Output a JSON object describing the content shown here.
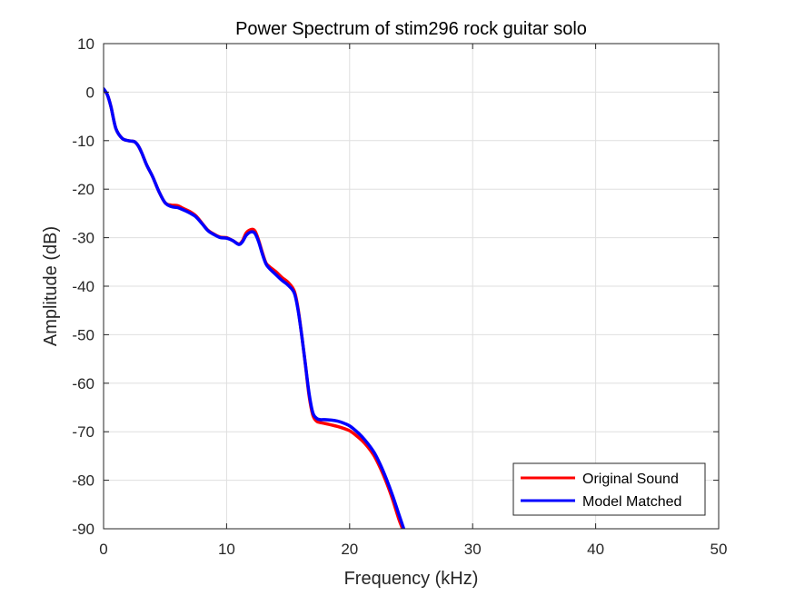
{
  "chart_data": {
    "type": "line",
    "title": "Power Spectrum of stim296 rock guitar solo",
    "xlabel": "Frequency (kHz)",
    "ylabel": "Amplitude (dB)",
    "xlim": [
      0,
      50
    ],
    "ylim": [
      -90,
      10
    ],
    "xticks": [
      0,
      10,
      20,
      30,
      40,
      50
    ],
    "yticks": [
      10,
      0,
      -10,
      -20,
      -30,
      -40,
      -50,
      -60,
      -70,
      -80,
      -90
    ],
    "grid": true,
    "legend_position": "bottom-right",
    "series": [
      {
        "name": "Original Sound",
        "color": "#ff0000",
        "x": [
          0,
          0.3,
          0.6,
          1.0,
          1.5,
          2.0,
          2.5,
          2.8,
          3.1,
          3.5,
          4.0,
          4.5,
          5.0,
          5.5,
          6.0,
          6.5,
          7.0,
          7.5,
          8.0,
          8.5,
          9.0,
          9.5,
          10.0,
          10.5,
          11.0,
          11.3,
          11.6,
          12.0,
          12.3,
          12.6,
          12.9,
          13.2,
          13.5,
          14.0,
          14.5,
          15.0,
          15.5,
          15.8,
          16.1,
          16.4,
          16.7,
          17.0,
          17.3,
          17.6,
          18.0,
          18.5,
          19.0,
          19.5,
          20.0,
          20.5,
          21.0,
          21.5,
          22.0,
          22.5,
          23.0,
          23.5,
          24.0,
          24.3
        ],
        "y": [
          0.5,
          -0.5,
          -3,
          -7.5,
          -9.5,
          -10,
          -10.2,
          -11,
          -12.5,
          -15,
          -17.5,
          -20.5,
          -22.8,
          -23.3,
          -23.4,
          -24.0,
          -24.6,
          -25.5,
          -27.0,
          -28.5,
          -29.3,
          -29.9,
          -30.0,
          -30.6,
          -31.3,
          -30.6,
          -29.0,
          -28.3,
          -28.6,
          -30.5,
          -33.0,
          -35.2,
          -36.0,
          -37.0,
          -38.2,
          -39.2,
          -41.0,
          -44.5,
          -50.0,
          -56.0,
          -62.5,
          -66.5,
          -67.8,
          -68.1,
          -68.3,
          -68.6,
          -68.9,
          -69.3,
          -69.8,
          -70.7,
          -71.8,
          -73.2,
          -75.0,
          -77.5,
          -80.5,
          -84.0,
          -88.0,
          -90.0
        ]
      },
      {
        "name": "Model Matched",
        "color": "#0000ff",
        "x": [
          0,
          0.3,
          0.6,
          1.0,
          1.5,
          2.0,
          2.5,
          2.8,
          3.1,
          3.5,
          4.0,
          4.5,
          5.0,
          5.5,
          6.0,
          6.5,
          7.0,
          7.5,
          8.0,
          8.5,
          9.0,
          9.5,
          10.0,
          10.5,
          11.0,
          11.3,
          11.6,
          12.0,
          12.3,
          12.6,
          12.9,
          13.2,
          13.5,
          14.0,
          14.5,
          15.0,
          15.5,
          15.8,
          16.1,
          16.4,
          16.7,
          17.0,
          17.3,
          17.6,
          18.0,
          18.5,
          19.0,
          19.5,
          20.0,
          20.5,
          21.0,
          21.5,
          22.0,
          22.5,
          23.0,
          23.5,
          24.0,
          24.4
        ],
        "y": [
          0.7,
          -0.5,
          -3,
          -7.5,
          -9.5,
          -10,
          -10.2,
          -11,
          -12.5,
          -15,
          -17.5,
          -20.5,
          -22.8,
          -23.6,
          -23.8,
          -24.3,
          -24.9,
          -25.7,
          -27.1,
          -28.6,
          -29.4,
          -30.0,
          -30.1,
          -30.6,
          -31.4,
          -30.8,
          -29.5,
          -28.8,
          -29.1,
          -30.8,
          -33.3,
          -35.4,
          -36.4,
          -37.6,
          -38.8,
          -39.8,
          -41.4,
          -44.8,
          -50.0,
          -56.0,
          -62.0,
          -66.0,
          -67.2,
          -67.5,
          -67.5,
          -67.6,
          -67.8,
          -68.2,
          -68.8,
          -69.8,
          -71.0,
          -72.5,
          -74.3,
          -76.8,
          -79.8,
          -83.2,
          -87.0,
          -90.0
        ]
      }
    ]
  }
}
